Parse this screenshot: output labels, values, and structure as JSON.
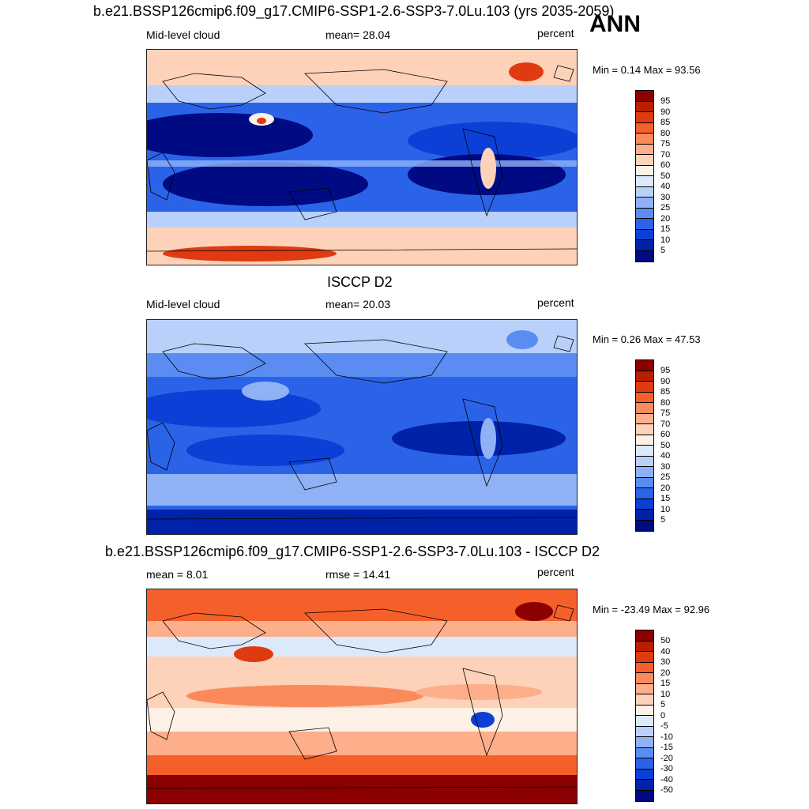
{
  "header": {
    "title": "b.e21.BSSP126cmip6.f09_g17.CMIP6-SSP1-2.6-SSP3-7.0Lu.103 (yrs 2035-2059)",
    "season": "ANN"
  },
  "panels": [
    {
      "title": "",
      "left_label": "Mid-level cloud",
      "center_label": "mean=  28.04",
      "right_label": "percent",
      "minmax": "Min =   0.14 Max =  93.56",
      "colorbar_ticks": [
        "95",
        "90",
        "85",
        "80",
        "75",
        "70",
        "60",
        "50",
        "40",
        "30",
        "25",
        "20",
        "15",
        "10",
        "5"
      ]
    },
    {
      "title": "ISCCP D2",
      "left_label": "Mid-level cloud",
      "center_label": "mean=  20.03",
      "right_label": "percent",
      "minmax": "Min =   0.26 Max =  47.53",
      "colorbar_ticks": [
        "95",
        "90",
        "85",
        "80",
        "75",
        "70",
        "60",
        "50",
        "40",
        "30",
        "25",
        "20",
        "15",
        "10",
        "5"
      ]
    },
    {
      "title": "b.e21.BSSP126cmip6.f09_g17.CMIP6-SSP1-2.6-SSP3-7.0Lu.103 - ISCCP D2",
      "left_label": "mean =   8.01",
      "center_label": "rmse =  14.41",
      "right_label": "percent",
      "minmax": "Min = -23.49 Max =  92.96",
      "colorbar_ticks": [
        "50",
        "40",
        "30",
        "20",
        "15",
        "10",
        "5",
        "0",
        "-5",
        "-10",
        "-15",
        "-20",
        "-30",
        "-40",
        "-50"
      ]
    }
  ],
  "colors": {
    "palette": [
      "#8b0000",
      "#b81e00",
      "#e03a10",
      "#f5602a",
      "#fa8a5c",
      "#fdae8a",
      "#fdd2b8",
      "#fdf0e6",
      "#dce9fb",
      "#b8d0fa",
      "#8fb2f7",
      "#5b8cf1",
      "#2b63e8",
      "#0b3fd6",
      "#0022a8",
      "#000a82"
    ]
  }
}
